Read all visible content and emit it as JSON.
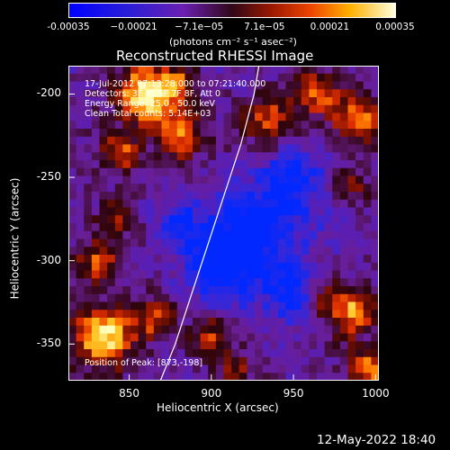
{
  "colorbar": {
    "ticks": [
      "-0.00035",
      "−0.00021",
      "−7.1e−05",
      "7.1e−05",
      "0.00021",
      "0.00035"
    ],
    "unit_label": "(photons cm⁻² s⁻¹ asec⁻²)",
    "min": -0.00035,
    "max": 0.00035
  },
  "chart_data": {
    "type": "heatmap",
    "title": "Reconstructed RHESSI Image",
    "xlabel": "Heliocentric X (arcsec)",
    "ylabel": "Heliocentric Y (arcsec)",
    "xlim": [
      813,
      1002
    ],
    "ylim": [
      -372,
      -183
    ],
    "x_ticks": [
      "850",
      "900",
      "950",
      "1000"
    ],
    "y_ticks": [
      "-200",
      "-250",
      "-300",
      "-350"
    ],
    "annotations": [
      "17-Jul-2012 07:13:28.000 to 07:21:40.000",
      "Detectors: 3F 4F 5F 7F 8F, Att 0",
      "Energy Range: 25.0 - 50.0 keV",
      "Clean   Total counts: 5.14E+03",
      "Position of Peak: [873,-198]"
    ],
    "peak_position": [
      873,
      -198
    ],
    "limb_curve": {
      "x": [
        869,
        878,
        888,
        898,
        908,
        918,
        926,
        929
      ],
      "y": [
        -372,
        -350,
        -320,
        -290,
        -260,
        -230,
        -200,
        -183
      ]
    },
    "bright_regions": [
      {
        "x": 860,
        "y": -200,
        "r": 18,
        "w": 1.4
      },
      {
        "x": 880,
        "y": -225,
        "r": 14,
        "w": 1.0
      },
      {
        "x": 845,
        "y": -235,
        "r": 12,
        "w": 0.9
      },
      {
        "x": 880,
        "y": -195,
        "r": 10,
        "w": 0.7
      },
      {
        "x": 935,
        "y": -215,
        "r": 15,
        "w": 0.9
      },
      {
        "x": 965,
        "y": -200,
        "r": 14,
        "w": 0.8
      },
      {
        "x": 990,
        "y": -215,
        "r": 14,
        "w": 1.0
      },
      {
        "x": 985,
        "y": -255,
        "r": 10,
        "w": 0.6
      },
      {
        "x": 835,
        "y": -345,
        "r": 18,
        "w": 1.4
      },
      {
        "x": 830,
        "y": -300,
        "r": 12,
        "w": 0.9
      },
      {
        "x": 865,
        "y": -335,
        "r": 12,
        "w": 0.8
      },
      {
        "x": 840,
        "y": -275,
        "r": 10,
        "w": 0.6
      },
      {
        "x": 900,
        "y": -345,
        "r": 12,
        "w": 0.7
      },
      {
        "x": 915,
        "y": -365,
        "r": 10,
        "w": 0.6
      },
      {
        "x": 985,
        "y": -330,
        "r": 14,
        "w": 1.1
      },
      {
        "x": 995,
        "y": -365,
        "r": 12,
        "w": 1.0
      },
      {
        "x": 965,
        "y": -320,
        "r": 10,
        "w": 0.6
      }
    ],
    "dark_regions": [
      {
        "x": 930,
        "y": -280,
        "r": 30,
        "w": 0.9
      },
      {
        "x": 905,
        "y": -305,
        "r": 22,
        "w": 0.8
      },
      {
        "x": 950,
        "y": -320,
        "r": 16,
        "w": 0.8
      },
      {
        "x": 880,
        "y": -280,
        "r": 15,
        "w": 0.6
      },
      {
        "x": 950,
        "y": -250,
        "r": 16,
        "w": 0.6
      }
    ]
  },
  "footer": {
    "timestamp": "12-May-2022 18:40"
  }
}
